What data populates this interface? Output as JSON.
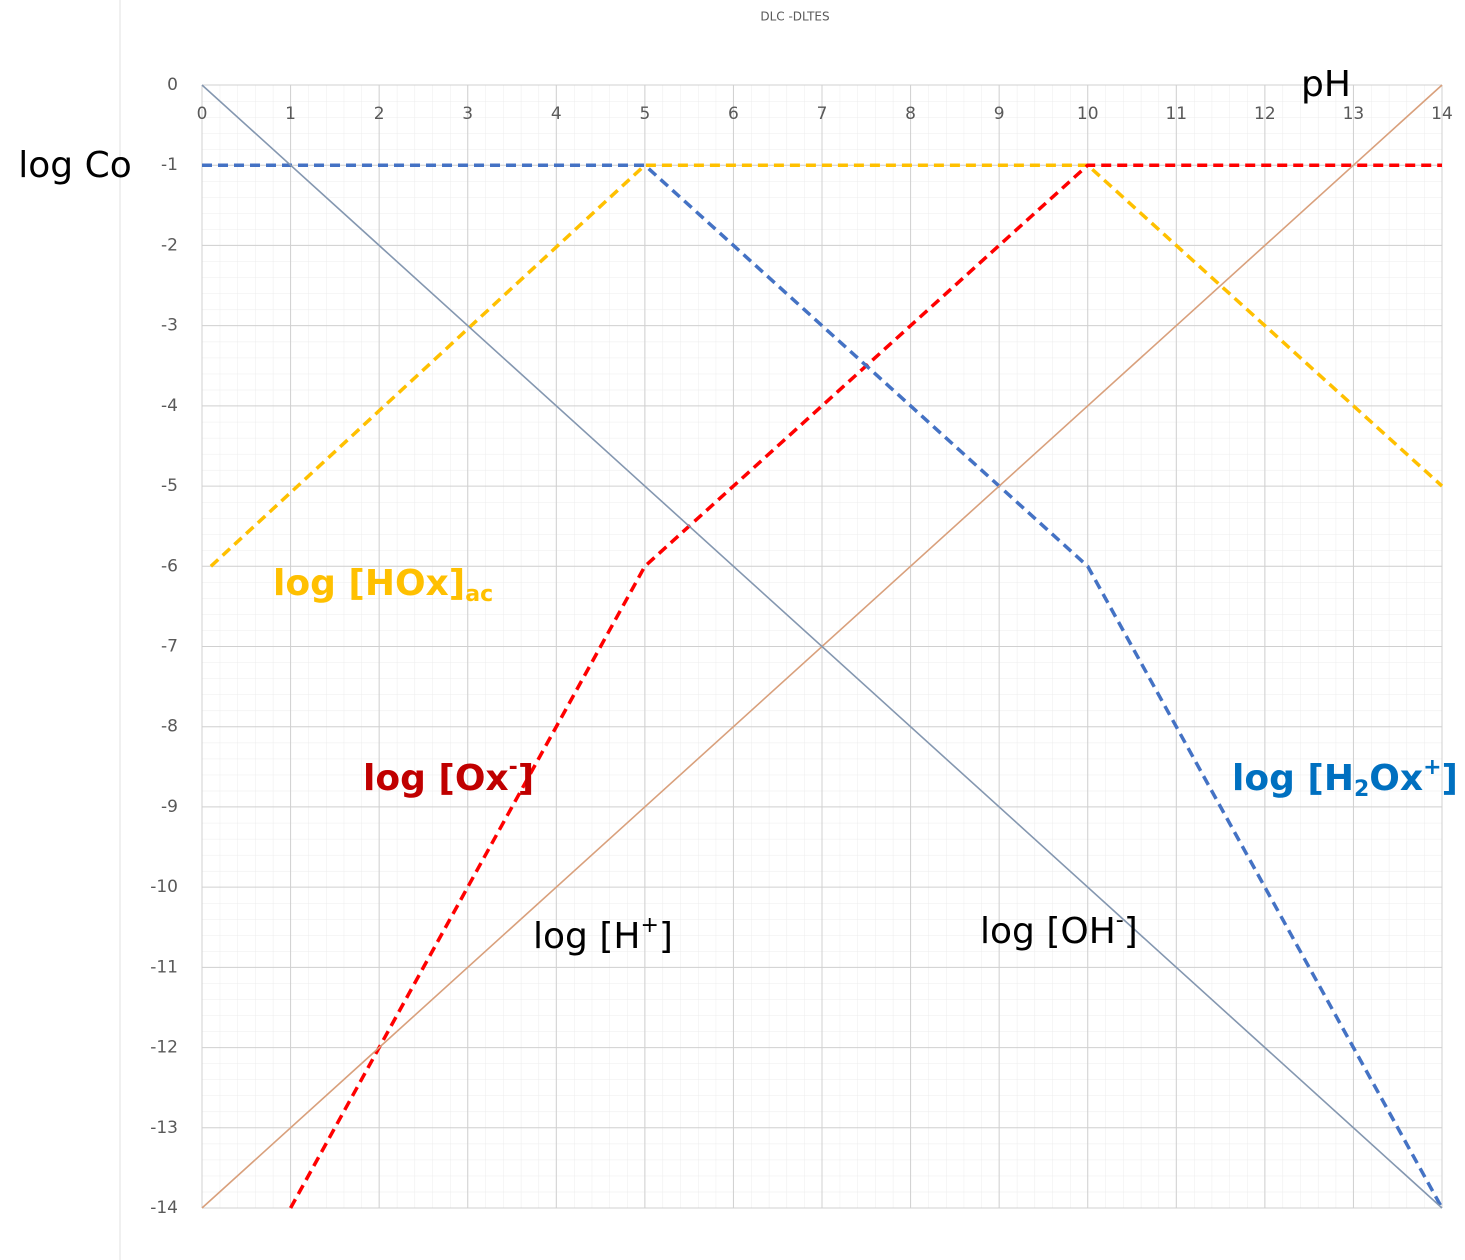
{
  "chart_data": {
    "type": "line",
    "title": "DLC -DLTES",
    "x_label": "pH",
    "y_label": "log Co",
    "xlim": [
      0,
      14
    ],
    "ylim": [
      -14,
      0
    ],
    "xticks": [
      0,
      1,
      2,
      3,
      4,
      5,
      6,
      7,
      8,
      9,
      10,
      11,
      12,
      13,
      14
    ],
    "yticks": [
      0,
      -1,
      -2,
      -3,
      -4,
      -5,
      -6,
      -7,
      -8,
      -9,
      -10,
      -11,
      -12,
      -13,
      -14
    ],
    "grid": true,
    "series": [
      {
        "name": [
          {
            "text": "log [HOx]"
          },
          {
            "text": "ac",
            "sub": true
          }
        ],
        "color": "#ffc000",
        "label_color": "#ffc000",
        "label_bold": true,
        "dashed": true,
        "x": [
          0.1,
          5,
          10,
          14
        ],
        "values": [
          -6,
          -1,
          -1,
          -5
        ]
      },
      {
        "name": [
          {
            "text": "log [Ox"
          },
          {
            "text": "-",
            "sup": true
          },
          {
            "text": "]"
          }
        ],
        "color": "#ff0000",
        "label_color": "#c00000",
        "label_bold": true,
        "dashed": true,
        "x": [
          1,
          5,
          10,
          14
        ],
        "values": [
          -14,
          -6,
          -1,
          -1
        ]
      },
      {
        "name": [
          {
            "text": "log [H"
          },
          {
            "text": "2",
            "sub": true
          },
          {
            "text": "Ox"
          },
          {
            "text": "+",
            "sup": true
          },
          {
            "text": "]"
          }
        ],
        "color": "#4472c4",
        "label_color": "#0070c0",
        "label_bold": true,
        "dashed": true,
        "x": [
          0,
          5,
          10,
          14
        ],
        "values": [
          -1,
          -1,
          -6,
          -14
        ]
      },
      {
        "name": [
          {
            "text": "log [H"
          },
          {
            "text": "+",
            "sup": true
          },
          {
            "text": "]"
          }
        ],
        "color": "#d9a07c",
        "label_color": "#000000",
        "label_bold": false,
        "dashed": false,
        "x": [
          0,
          14
        ],
        "values": [
          -14,
          0
        ]
      },
      {
        "name": [
          {
            "text": "log [OH"
          },
          {
            "text": "-",
            "sup": true
          },
          {
            "text": "]"
          }
        ],
        "color": "#8497b0",
        "label_color": "#000000",
        "label_bold": false,
        "dashed": false,
        "x": [
          0,
          14
        ],
        "values": [
          0,
          -14
        ]
      }
    ]
  }
}
